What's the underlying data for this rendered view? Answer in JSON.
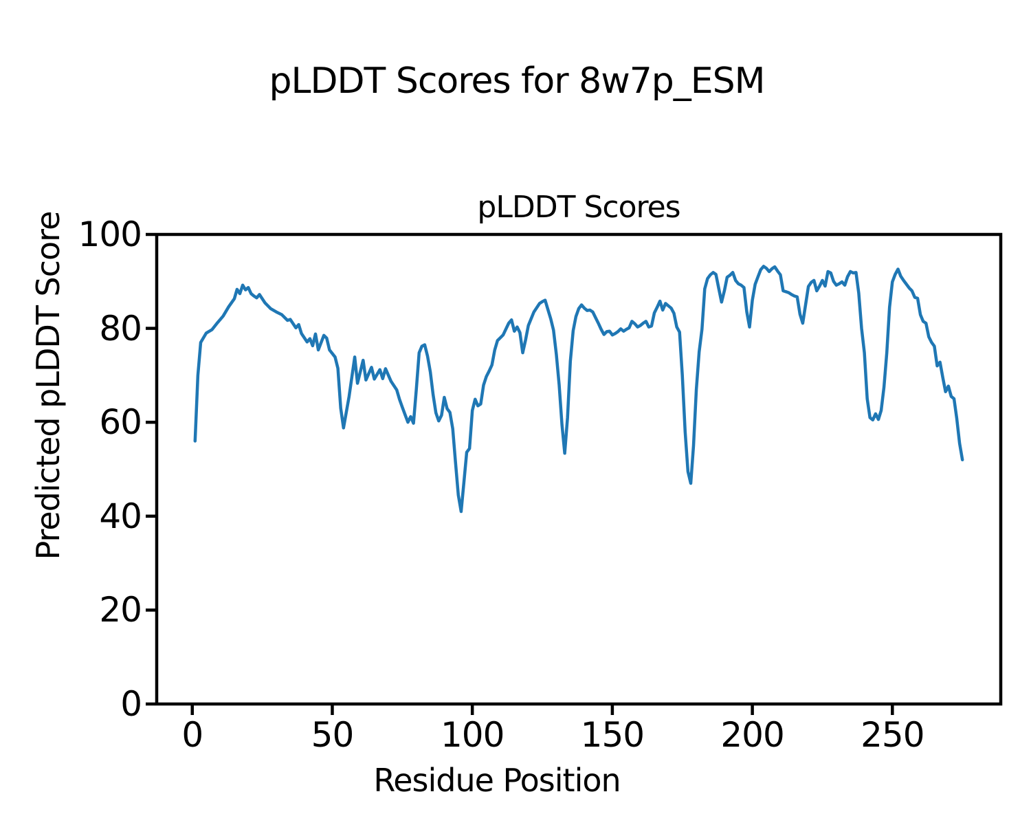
{
  "figure": {
    "suptitle": "pLDDT Scores for 8w7p_ESM"
  },
  "chart_data": {
    "type": "line",
    "title": "pLDDT Scores",
    "xlabel": "Residue Position",
    "ylabel": "Predicted pLDDT Score",
    "xlim": [
      -12.7,
      288.7
    ],
    "ylim": [
      0,
      100
    ],
    "xticks": [
      0,
      50,
      100,
      150,
      200,
      250
    ],
    "yticks": [
      0,
      20,
      40,
      60,
      80,
      100
    ],
    "grid": false,
    "legend_position": "none",
    "line_color": "#1f77b4",
    "axis_color": "#000000",
    "series": [
      {
        "x": [
          1,
          2,
          3,
          5,
          7,
          9,
          11,
          13,
          15,
          16,
          17,
          18,
          19,
          20,
          21,
          22,
          23,
          24,
          26,
          28,
          30,
          32,
          34,
          35,
          37,
          38,
          39,
          41,
          42,
          43,
          44,
          45,
          47,
          48,
          49,
          51,
          52,
          53,
          54,
          56,
          58,
          59,
          61,
          62,
          64,
          65,
          67,
          68,
          69,
          71,
          73,
          74,
          75,
          76,
          77,
          78,
          79,
          80,
          81,
          82,
          83,
          84,
          85,
          86,
          87,
          88,
          89,
          90,
          91,
          92,
          93,
          94,
          95,
          96,
          97,
          98,
          99,
          100,
          101,
          102,
          103,
          104,
          105,
          106,
          107,
          108,
          109,
          110,
          111,
          113,
          114,
          115,
          116,
          117,
          118,
          119,
          120,
          122,
          124,
          125,
          126,
          127,
          128,
          129,
          130,
          131,
          132,
          133,
          134,
          135,
          136,
          137,
          138,
          139,
          140,
          141,
          142,
          143,
          144,
          145,
          146,
          147,
          148,
          149,
          150,
          151,
          152,
          153,
          154,
          155,
          156,
          157,
          158,
          159,
          160,
          161,
          162,
          163,
          164,
          165,
          166,
          167,
          168,
          169,
          170,
          171,
          172,
          173,
          174,
          175,
          176,
          177,
          178,
          179,
          180,
          181,
          182,
          183,
          184,
          185,
          186,
          187,
          188,
          189,
          190,
          191,
          192,
          193,
          194,
          195,
          196,
          197,
          198,
          199,
          200,
          201,
          202,
          203,
          204,
          205,
          206,
          207,
          208,
          209,
          210,
          211,
          212,
          213,
          214,
          215,
          216,
          217,
          218,
          219,
          220,
          221,
          222,
          223,
          224,
          225,
          226,
          227,
          228,
          229,
          230,
          231,
          232,
          233,
          234,
          235,
          236,
          237,
          238,
          239,
          240,
          241,
          242,
          243,
          244,
          245,
          246,
          247,
          248,
          249,
          250,
          251,
          252,
          253,
          254,
          255,
          256,
          257,
          258,
          259,
          260,
          261,
          262,
          263,
          264,
          265,
          266,
          267,
          268,
          269,
          270,
          271,
          272,
          273,
          274,
          275
        ],
        "y": [
          56,
          70,
          77,
          79,
          79.7,
          81.2,
          82.6,
          84.6,
          86.3,
          88.3,
          87.4,
          89.2,
          88.2,
          88.7,
          87.4,
          86.9,
          86.5,
          87.2,
          85.4,
          84.2,
          83.5,
          82.9,
          81.7,
          81.9,
          80.1,
          80.8,
          78.9,
          77.1,
          77.8,
          76.3,
          78.8,
          75.4,
          78.5,
          77.9,
          75.4,
          73.9,
          71.5,
          63,
          58.8,
          65.5,
          73.9,
          68.3,
          73.2,
          69,
          71.7,
          69.2,
          71.2,
          69.3,
          71.4,
          68.7,
          66.9,
          64.9,
          63.2,
          61.6,
          60,
          61.2,
          59.8,
          67,
          74.8,
          76.2,
          76.5,
          74.1,
          70.7,
          65.9,
          62,
          60.3,
          61.5,
          65.3,
          62.9,
          62.1,
          58.6,
          51.5,
          44.5,
          41,
          47.3,
          53.6,
          54.4,
          62.5,
          64.9,
          63.5,
          63.9,
          67.9,
          69.7,
          70.9,
          72.2,
          75.4,
          77.4,
          78,
          78.6,
          81.1,
          81.8,
          79.4,
          80.3,
          79.1,
          74.8,
          77.5,
          80.6,
          83.5,
          85.3,
          85.7,
          86,
          84,
          82,
          79.6,
          74.5,
          68,
          59.5,
          53.4,
          61,
          73,
          79.5,
          82.5,
          84.2,
          85,
          84.3,
          83.8,
          83.9,
          83.5,
          82.3,
          81.1,
          79.8,
          78.7,
          79.3,
          79.4,
          78.6,
          78.9,
          79.3,
          79.9,
          79.4,
          79.8,
          80.1,
          81.5,
          81,
          80.3,
          80.6,
          81.1,
          81.5,
          80.3,
          80.5,
          83.3,
          84.5,
          85.8,
          83.9,
          85.3,
          84.8,
          84.3,
          83.2,
          80.3,
          79.2,
          70,
          58,
          49.5,
          47,
          55,
          67,
          75,
          79.8,
          88.4,
          90.6,
          91.4,
          91.9,
          91.5,
          88.5,
          85.6,
          88,
          90.9,
          91.3,
          91.9,
          90.2,
          89.5,
          89.2,
          88.7,
          83.5,
          80.3,
          86,
          89.4,
          91,
          92.5,
          93.2,
          92.8,
          92.1,
          92.7,
          93.1,
          92.2,
          91.4,
          88,
          87.8,
          87.6,
          87.2,
          86.9,
          86.7,
          83,
          81.1,
          85,
          88.9,
          89.8,
          90.2,
          88,
          89,
          90.2,
          89,
          92.1,
          91.8,
          90,
          89.2,
          89.5,
          89.9,
          89.2,
          91,
          92.1,
          91.8,
          91.9,
          87.5,
          80,
          74.8,
          65,
          61,
          60.5,
          61.8,
          60.6,
          62.5,
          67.5,
          74.8,
          84.5,
          89.9,
          91.5,
          92.6,
          91.1,
          90.2,
          89.4,
          88.6,
          88,
          86.6,
          86.4,
          82.9,
          81.5,
          81.1,
          78.2,
          77,
          76.2,
          72,
          72.8,
          69.5,
          66.5,
          67.7,
          65.5,
          65,
          60.8,
          55.5,
          52
        ]
      }
    ]
  }
}
